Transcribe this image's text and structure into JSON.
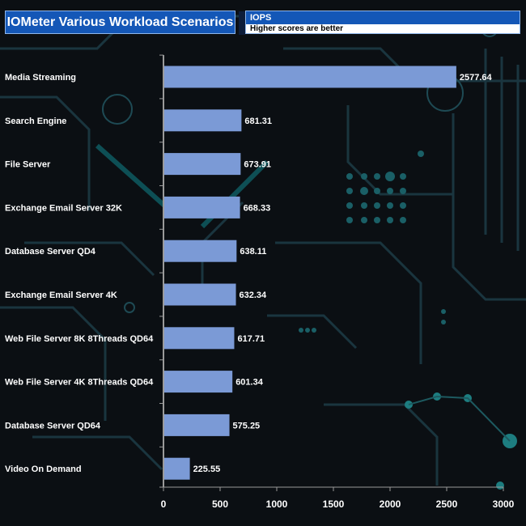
{
  "chart_data": {
    "type": "bar",
    "orientation": "horizontal",
    "title": "IOMeter Various Workload Scenarios",
    "series": [
      {
        "name": "IOPS",
        "color": "#7b9ad6"
      }
    ],
    "note": "Higher scores are better",
    "categories": [
      "Media Streaming",
      "Search Engine",
      "File Server",
      "Exchange Email Server 32K",
      "Database Server QD4",
      "Exchange Email Server 4K",
      "Web File Server 8K 8Threads QD64",
      "Web File Server 4K 8Threads QD64",
      "Database Server QD64",
      "Video On Demand"
    ],
    "values": [
      2577.64,
      681.31,
      673.91,
      668.33,
      638.11,
      632.34,
      617.71,
      601.34,
      575.25,
      225.55
    ],
    "value_labels": [
      "2577.64",
      "681.31",
      "673.91",
      "668.33",
      "638.11",
      "632.34",
      "617.71",
      "601.34",
      "575.25",
      "225.55"
    ],
    "xlim": [
      0,
      3000
    ],
    "x_ticks": [
      0,
      500,
      1000,
      1500,
      2000,
      2500,
      3000
    ],
    "x_tick_labels": [
      "0",
      "500",
      "1000",
      "1500",
      "2000",
      "2500",
      "3000"
    ],
    "grid": false
  },
  "header": {
    "title": "IOMeter Various Workload Scenarios",
    "legend_metric": "IOPS",
    "legend_note": "Higher scores are better"
  }
}
